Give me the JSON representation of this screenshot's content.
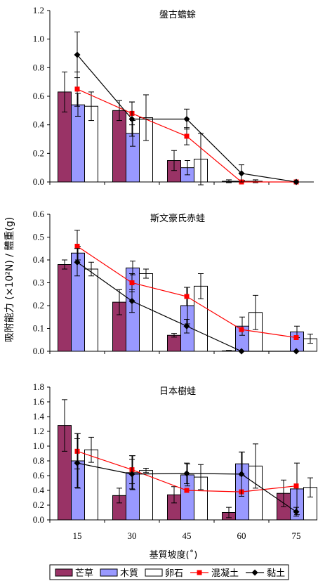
{
  "ylabel": "吸附能力 (×10²N) / 體重(g)",
  "xlabel": "基質坡度(˚)",
  "categories": [
    "15",
    "30",
    "45",
    "60",
    "75"
  ],
  "legend": [
    {
      "label": "芒草",
      "kind": "bar",
      "color": "#993366"
    },
    {
      "label": "木質",
      "kind": "bar",
      "color": "#9999ff"
    },
    {
      "label": "卵石",
      "kind": "bar",
      "color": "#ffffff"
    },
    {
      "label": "混凝土",
      "kind": "line",
      "color": "#ff0000",
      "marker": "square"
    },
    {
      "label": "黏土",
      "kind": "line",
      "color": "#000000",
      "marker": "diamond"
    }
  ],
  "chart_data": [
    {
      "type": "bar",
      "title": "盤古蟾蜍",
      "categories": [
        "15",
        "30",
        "45",
        "60",
        "75"
      ],
      "ylim": [
        0,
        1.2
      ],
      "yticks": [
        "0.0",
        "0.2",
        "0.4",
        "0.6",
        "0.8",
        "1.0",
        "1.2"
      ],
      "series": [
        {
          "name": "芒草",
          "kind": "bar",
          "values": [
            0.63,
            0.5,
            0.15,
            0.005,
            0
          ],
          "errors": [
            0.14,
            0.07,
            0.07,
            0.01,
            0
          ]
        },
        {
          "name": "木質",
          "kind": "bar",
          "values": [
            0.54,
            0.34,
            0.1,
            0.005,
            0
          ],
          "errors": [
            0.08,
            0.09,
            0.05,
            0.005,
            0
          ]
        },
        {
          "name": "卵石",
          "kind": "bar",
          "values": [
            0.53,
            0.45,
            0.16,
            0.005,
            0
          ],
          "errors": [
            0.1,
            0.16,
            0.18,
            0.01,
            0
          ]
        },
        {
          "name": "混凝土",
          "kind": "line",
          "values": [
            0.65,
            0.48,
            0.32,
            0.0,
            0.0
          ],
          "errors": [
            0.12,
            0.08,
            0.06,
            0.0,
            0.0
          ]
        },
        {
          "name": "黏土",
          "kind": "line",
          "values": [
            0.89,
            0.44,
            0.44,
            0.06,
            0.0
          ],
          "errors": [
            0.16,
            0.12,
            0.07,
            0.06,
            0.0
          ]
        }
      ]
    },
    {
      "type": "bar",
      "title": "斯文豪氏赤蛙",
      "categories": [
        "15",
        "30",
        "45",
        "60",
        "75"
      ],
      "ylim": [
        0,
        0.6
      ],
      "yticks": [
        "0.0",
        "0.1",
        "0.2",
        "0.3",
        "0.4",
        "0.5",
        "0.6"
      ],
      "series": [
        {
          "name": "芒草",
          "kind": "bar",
          "values": [
            0.38,
            0.215,
            0.07,
            0.002,
            0
          ],
          "errors": [
            0.02,
            0.055,
            0.008,
            0.002,
            0
          ]
        },
        {
          "name": "木質",
          "kind": "bar",
          "values": [
            0.43,
            0.365,
            0.2,
            0.11,
            0.085
          ],
          "errors": [
            0.03,
            0.03,
            0.08,
            0.04,
            0.025
          ]
        },
        {
          "name": "卵石",
          "kind": "bar",
          "values": [
            0.36,
            0.34,
            0.285,
            0.17,
            0.055
          ],
          "errors": [
            0.03,
            0.02,
            0.055,
            0.075,
            0.02
          ]
        },
        {
          "name": "混凝土",
          "kind": "line",
          "values": [
            0.46,
            0.3,
            0.24,
            0.095,
            0.06
          ],
          "errors": [
            0.07,
            0.04,
            0.04,
            0.0,
            0.0
          ]
        },
        {
          "name": "黏土",
          "kind": "line",
          "values": [
            0.39,
            0.22,
            0.11,
            0.0,
            0.0
          ],
          "errors": [
            0.06,
            0.05,
            0.03,
            0.0,
            0.0
          ]
        }
      ]
    },
    {
      "type": "bar",
      "title": "日本樹蛙",
      "categories": [
        "15",
        "30",
        "45",
        "60",
        "75"
      ],
      "ylim": [
        0,
        1.8
      ],
      "yticks": [
        "0.0",
        "0.2",
        "0.4",
        "0.6",
        "0.8",
        "1.0",
        "1.2",
        "1.4",
        "1.6",
        "1.8"
      ],
      "series": [
        {
          "name": "芒草",
          "kind": "bar",
          "values": [
            1.28,
            0.33,
            0.34,
            0.1,
            0.36
          ],
          "errors": [
            0.35,
            0.1,
            0.11,
            0.07,
            0.18
          ]
        },
        {
          "name": "木質",
          "kind": "bar",
          "values": [
            0.8,
            0.64,
            0.61,
            0.76,
            0.42
          ],
          "errors": [
            0.37,
            0.23,
            0.15,
            0.16,
            0.35
          ]
        },
        {
          "name": "卵石",
          "kind": "bar",
          "values": [
            0.95,
            0.67,
            0.58,
            0.73,
            0.44
          ],
          "errors": [
            0.17,
            0.03,
            0.17,
            0.3,
            0.13
          ]
        },
        {
          "name": "混凝土",
          "kind": "line",
          "values": [
            0.93,
            0.68,
            0.4,
            0.38,
            0.46
          ],
          "errors": [
            0.24,
            0.19,
            0.0,
            0.0,
            0.0
          ]
        },
        {
          "name": "黏土",
          "kind": "line",
          "values": [
            0.77,
            0.62,
            0.63,
            0.62,
            0.11
          ],
          "errors": [
            0.33,
            0.2,
            0.14,
            0.3,
            0.06
          ]
        }
      ]
    }
  ]
}
